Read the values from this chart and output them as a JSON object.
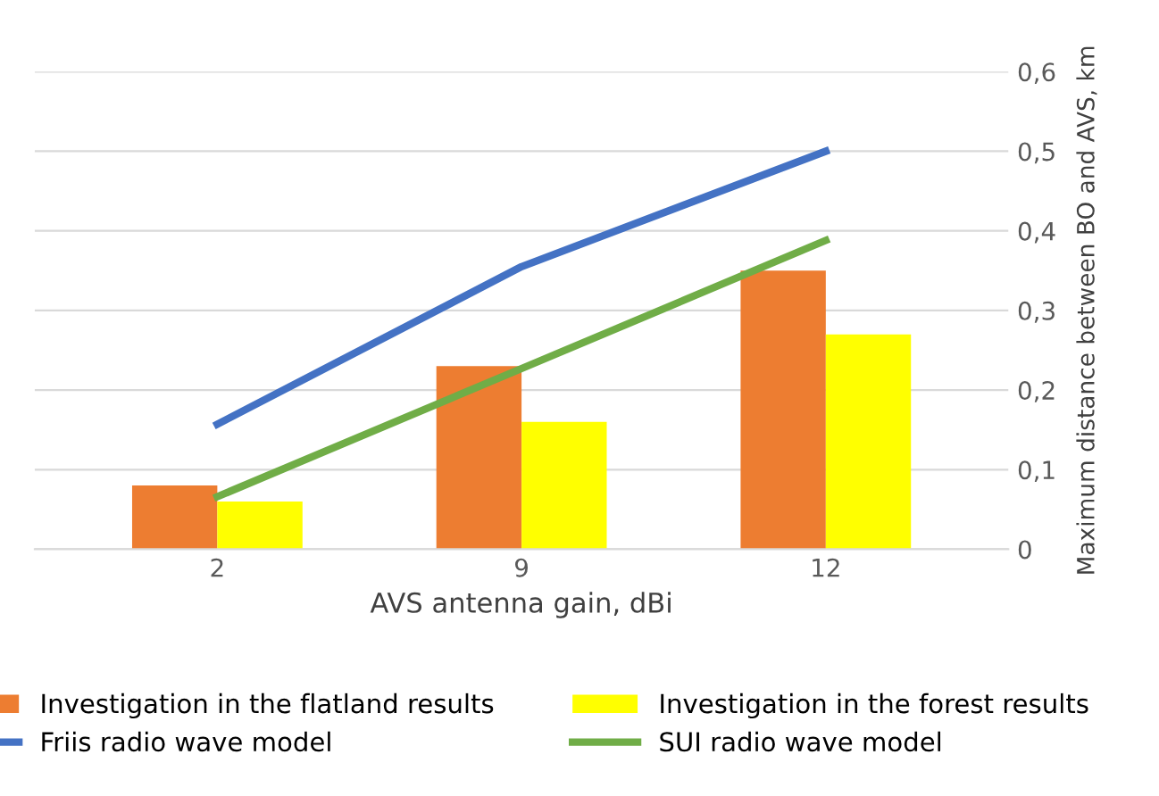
{
  "chart_data": {
    "type": "bar",
    "xlabel": "AVS antenna gain, dBi",
    "ylabel": "Maximum distance between BO and AVS, km",
    "categories": [
      "2",
      "9",
      "12"
    ],
    "series": [
      {
        "name": "Investigation in the flatland results",
        "color": "#ed7d31",
        "values": [
          0.08,
          0.23,
          0.35
        ]
      },
      {
        "name": "Investigation in the forest results",
        "color": "#ffff00",
        "values": [
          0.06,
          0.16,
          0.27
        ]
      },
      {
        "name": "Friis radio wave model",
        "type": "line",
        "color": "#4472c4",
        "values": [
          0.157,
          0.355,
          0.5
        ]
      },
      {
        "name": "SUI radio wave model",
        "type": "line",
        "color": "#70ad47",
        "values": [
          0.066,
          0.227,
          0.388
        ]
      }
    ],
    "ylim": [
      0,
      0.6
    ],
    "yticks": [
      0,
      {
        "value": 0.1,
        "label": "0,1"
      },
      {
        "value": 0.2,
        "label": "0,2"
      },
      {
        "value": 0.3,
        "label": "0,3"
      },
      {
        "value": 0.4,
        "label": "0,4"
      },
      {
        "value": 0.5,
        "label": "0,5"
      },
      {
        "value": 0.6,
        "label": "0,6"
      }
    ],
    "grid": "y",
    "legend": "bottom",
    "marker": "none",
    "line_style": "solid"
  }
}
